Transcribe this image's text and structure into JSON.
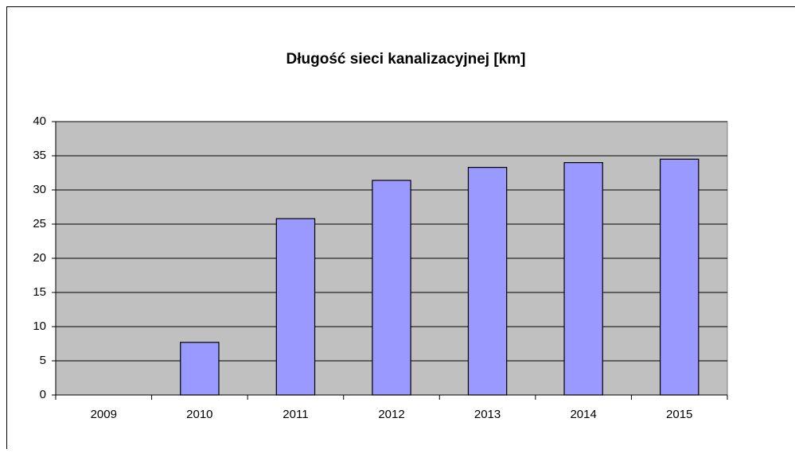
{
  "chart_data": {
    "type": "bar",
    "title": "Długość sieci kanalizacyjnej [km]",
    "categories": [
      "2009",
      "2010",
      "2011",
      "2012",
      "2013",
      "2014",
      "2015"
    ],
    "values": [
      0,
      7.7,
      25.8,
      31.4,
      33.3,
      34.0,
      34.5
    ],
    "color": "#9999ff",
    "plot_background": "#c0c0c0",
    "ylim": [
      0,
      40
    ],
    "yticks": [
      0,
      5,
      10,
      15,
      20,
      25,
      30,
      35,
      40
    ],
    "grid": true
  }
}
